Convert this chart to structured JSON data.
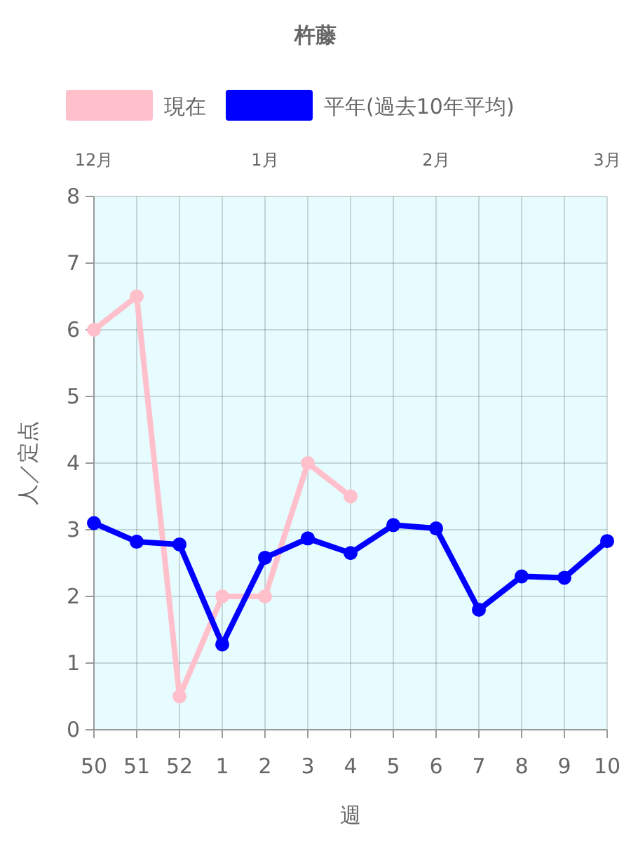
{
  "chart_data": {
    "type": "line",
    "title": "杵藤",
    "xlabel": "週",
    "ylabel": "人／定点",
    "categories": [
      "50",
      "51",
      "52",
      "1",
      "2",
      "3",
      "4",
      "5",
      "6",
      "7",
      "8",
      "9",
      "10"
    ],
    "series": [
      {
        "name": "現在",
        "color": "#ffc0cb",
        "values": [
          6,
          6.5,
          0.5,
          2,
          2,
          4,
          3.5,
          null,
          null,
          null,
          null,
          null,
          null
        ]
      },
      {
        "name": "平年(過去10年平均)",
        "color": "#0000ff",
        "values": [
          3.1,
          2.82,
          2.78,
          1.28,
          2.58,
          2.87,
          2.65,
          3.07,
          3.02,
          1.8,
          2.3,
          2.28,
          2.83
        ]
      }
    ],
    "ylim": [
      0,
      8
    ],
    "yticks": [
      0,
      1,
      2,
      3,
      4,
      5,
      6,
      7,
      8
    ],
    "annotations": [
      "12月",
      "1月",
      "2月",
      "3月"
    ],
    "grid": true,
    "legend": "top",
    "marker": "circle",
    "line_style": "solid"
  }
}
